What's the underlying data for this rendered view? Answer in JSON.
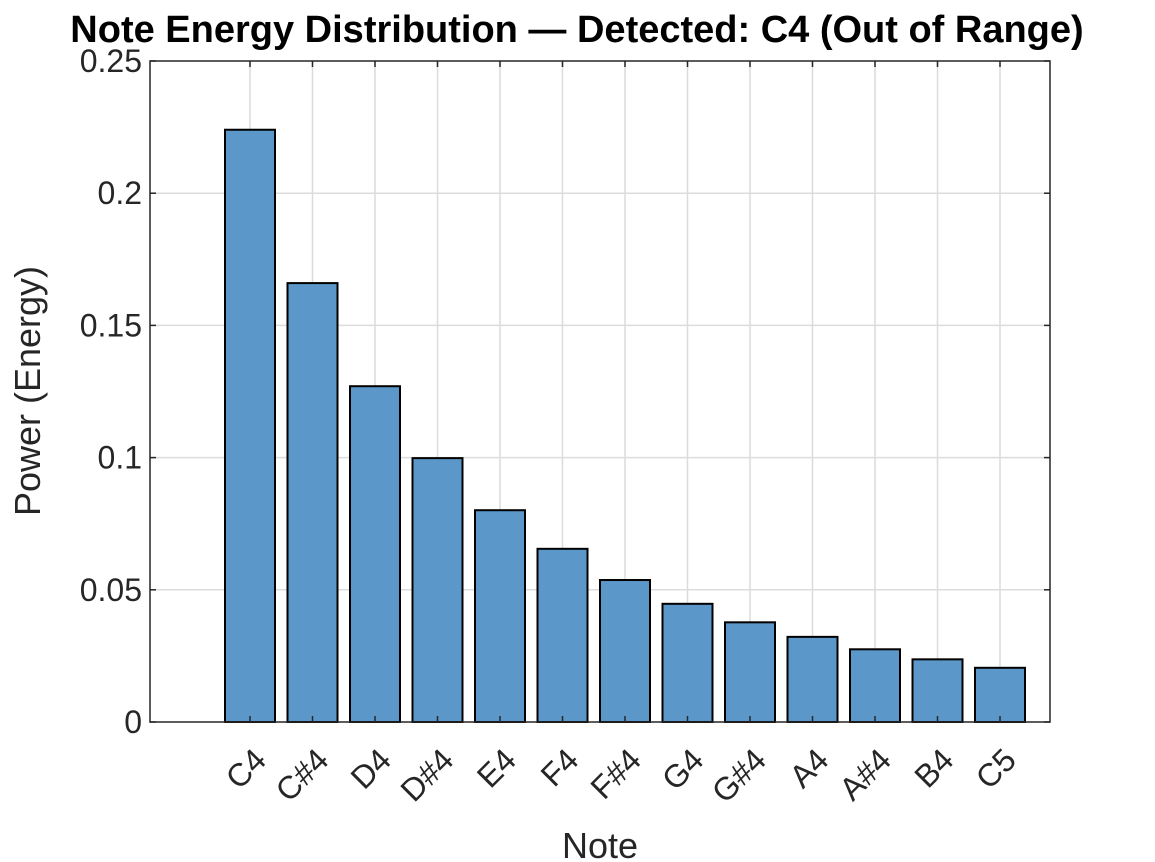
{
  "chart_data": {
    "type": "bar",
    "title": "Note Energy Distribution — Detected: C4 (Out of Range)",
    "xlabel": "Note",
    "ylabel": "Power (Energy)",
    "categories": [
      "C4",
      "C#4",
      "D4",
      "D#4",
      "E4",
      "F4",
      "F#4",
      "G4",
      "G#4",
      "A4",
      "A#4",
      "B4",
      "C5"
    ],
    "values": [
      0.224,
      0.166,
      0.127,
      0.0998,
      0.0801,
      0.0655,
      0.0537,
      0.0447,
      0.0377,
      0.0322,
      0.0275,
      0.0237,
      0.0205
    ],
    "ylim": [
      0,
      0.25
    ],
    "yticks": [
      0,
      0.05,
      0.1,
      0.15,
      0.2,
      0.25
    ],
    "ytick_labels": [
      "0",
      "0.05",
      "0.1",
      "0.15",
      "0.2",
      "0.25"
    ],
    "grid": true,
    "bar_color": "#5b97c8",
    "edge_color": "#000000"
  }
}
